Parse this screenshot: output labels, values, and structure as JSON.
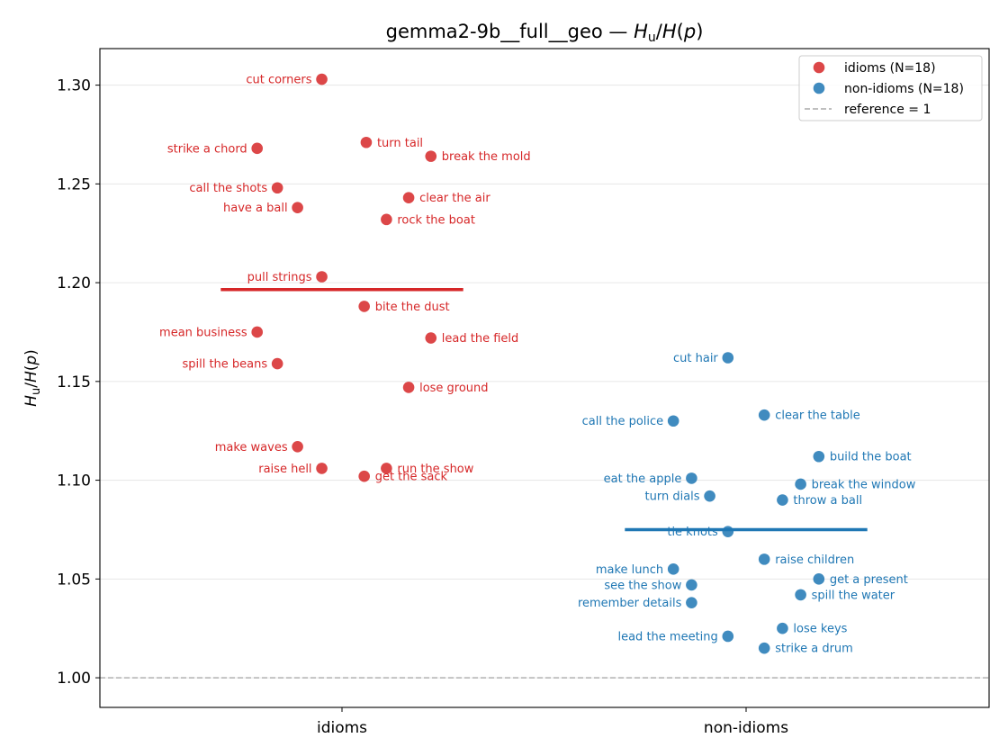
{
  "chart_data": {
    "type": "scatter",
    "title": "gemma2-9b__full__geo — ",
    "title_math": "H_u/H(p)",
    "ylabel": "H_u/H(p)",
    "ylim": [
      0.985,
      1.3185
    ],
    "yticks": [
      "1.00",
      "1.05",
      "1.10",
      "1.15",
      "1.20",
      "1.25",
      "1.30"
    ],
    "categories": [
      "idioms",
      "non-idioms"
    ],
    "grid": "horizontal",
    "legend_placement": "top-right",
    "reference": {
      "value": 1.0,
      "label": "reference = 1",
      "color": "#999999"
    },
    "series": [
      {
        "name": "idioms (N=18)",
        "category": "idioms",
        "color": "#d62728",
        "mean": 1.1965,
        "points": [
          {
            "label": "cut corners",
            "y": 1.303,
            "dx": -0.05
          },
          {
            "label": "strike a chord",
            "y": 1.268,
            "dx": -0.21
          },
          {
            "label": "turn tail",
            "y": 1.271,
            "dx": 0.06
          },
          {
            "label": "break the mold",
            "y": 1.264,
            "dx": 0.22
          },
          {
            "label": "call the shots",
            "y": 1.248,
            "dx": -0.16
          },
          {
            "label": "have a ball",
            "y": 1.238,
            "dx": -0.11
          },
          {
            "label": "clear the air",
            "y": 1.243,
            "dx": 0.165
          },
          {
            "label": "rock the boat",
            "y": 1.232,
            "dx": 0.11
          },
          {
            "label": "pull strings",
            "y": 1.203,
            "dx": -0.05
          },
          {
            "label": "bite the dust",
            "y": 1.188,
            "dx": 0.055
          },
          {
            "label": "mean business",
            "y": 1.175,
            "dx": -0.21
          },
          {
            "label": "lead the field",
            "y": 1.172,
            "dx": 0.22
          },
          {
            "label": "spill the beans",
            "y": 1.159,
            "dx": -0.16
          },
          {
            "label": "lose ground",
            "y": 1.147,
            "dx": 0.165
          },
          {
            "label": "make waves",
            "y": 1.117,
            "dx": -0.11
          },
          {
            "label": "raise hell",
            "y": 1.106,
            "dx": -0.05
          },
          {
            "label": "run the show",
            "y": 1.106,
            "dx": 0.11
          },
          {
            "label": "get the sack",
            "y": 1.102,
            "dx": 0.055
          }
        ]
      },
      {
        "name": "non-idioms (N=18)",
        "category": "non-idioms",
        "color": "#1f77b4",
        "mean": 1.075,
        "points": [
          {
            "label": "cut hair",
            "y": 1.162,
            "dx": -0.045
          },
          {
            "label": "clear the table",
            "y": 1.133,
            "dx": 0.045
          },
          {
            "label": "call the police",
            "y": 1.13,
            "dx": -0.18,
            "side": "left"
          },
          {
            "label": "build the boat",
            "y": 1.112,
            "dx": 0.18
          },
          {
            "label": "eat the apple",
            "y": 1.101,
            "dx": -0.135,
            "side": "left"
          },
          {
            "label": "break the window",
            "y": 1.098,
            "dx": 0.135
          },
          {
            "label": "turn dials",
            "y": 1.092,
            "dx": -0.09,
            "side": "left"
          },
          {
            "label": "throw a ball",
            "y": 1.09,
            "dx": 0.09
          },
          {
            "label": "tie knots",
            "y": 1.074,
            "dx": -0.045,
            "side": "left"
          },
          {
            "label": "raise children",
            "y": 1.06,
            "dx": 0.045
          },
          {
            "label": "make lunch",
            "y": 1.055,
            "dx": -0.18,
            "side": "left"
          },
          {
            "label": "get a present",
            "y": 1.05,
            "dx": 0.18
          },
          {
            "label": "see the show",
            "y": 1.047,
            "dx": -0.135,
            "side": "left"
          },
          {
            "label": "spill the water",
            "y": 1.042,
            "dx": 0.135
          },
          {
            "label": "remember details",
            "y": 1.038,
            "dx": -0.135,
            "side": "left"
          },
          {
            "label": "lose keys",
            "y": 1.025,
            "dx": 0.09
          },
          {
            "label": "lead the meeting",
            "y": 1.021,
            "dx": -0.045,
            "side": "left"
          },
          {
            "label": "strike a drum",
            "y": 1.015,
            "dx": 0.045
          }
        ]
      }
    ]
  }
}
